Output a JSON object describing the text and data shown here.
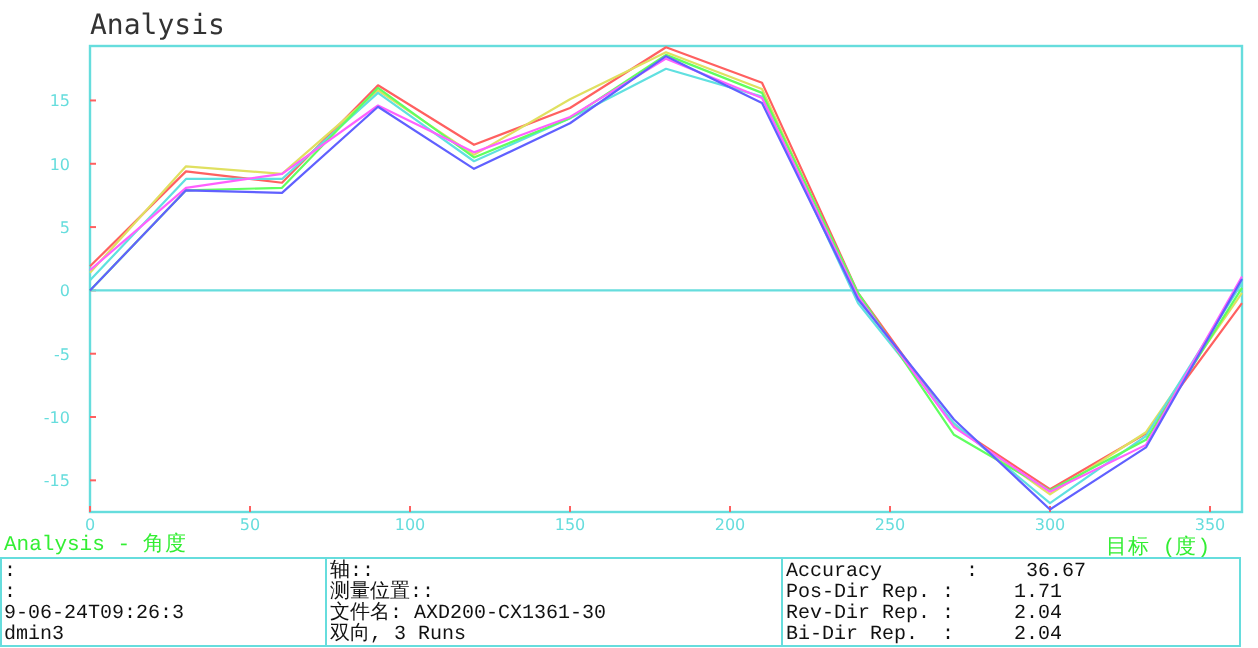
{
  "chart_data": {
    "type": "line",
    "title": "Analysis",
    "subtitle": "Analysis - 角度",
    "xlabel": "目标 (度)",
    "x": [
      0,
      30,
      60,
      90,
      120,
      150,
      180,
      210,
      240,
      270,
      300,
      330,
      360
    ],
    "xlim": [
      0,
      360
    ],
    "xticks": [
      0,
      50,
      100,
      150,
      200,
      250,
      300,
      350
    ],
    "ylim": [
      -17.5,
      19.3
    ],
    "yticks": [
      -15,
      -10,
      -5,
      0,
      5,
      10,
      15
    ],
    "grid": false,
    "ref_lines": [
      {
        "axis": "y",
        "value": 0,
        "color": "#66dddd"
      }
    ],
    "series": [
      {
        "color": "#ff6060",
        "values": [
          1.9,
          9.4,
          8.5,
          16.2,
          11.5,
          14.4,
          19.2,
          16.4,
          -0.2,
          -10.7,
          -15.7,
          -11.3,
          -1.0
        ]
      },
      {
        "color": "#e0e060",
        "values": [
          1.4,
          9.8,
          9.2,
          15.8,
          10.7,
          15.1,
          18.8,
          15.9,
          -0.5,
          -10.7,
          -16.1,
          -11.2,
          -0.2
        ]
      },
      {
        "color": "#60e0e0",
        "values": [
          0.8,
          8.8,
          8.8,
          15.6,
          10.2,
          13.6,
          17.5,
          15.3,
          -1.0,
          -10.5,
          -16.8,
          -11.5,
          0.6
        ]
      },
      {
        "color": "#60ff60",
        "values": [
          0,
          7.9,
          8.1,
          16.0,
          10.5,
          13.6,
          18.6,
          15.6,
          -0.2,
          -11.4,
          -15.8,
          -11.8,
          0.2
        ]
      },
      {
        "color": "#ff60ff",
        "values": [
          1.6,
          8.1,
          9.2,
          14.6,
          10.9,
          13.7,
          18.3,
          15.2,
          -0.5,
          -10.8,
          -15.9,
          -12.2,
          1.1
        ]
      },
      {
        "color": "#6060ff",
        "values": [
          0,
          7.9,
          7.7,
          14.5,
          9.6,
          13.2,
          18.5,
          14.8,
          -0.7,
          -10.2,
          -17.3,
          -12.4,
          0.9
        ]
      }
    ],
    "annotations": [
      ":",
      ":",
      "9-06-24T09:26:3",
      "dmin3",
      "轴::",
      "测量位置::",
      "文件名: AXD200-CX1361-30",
      "双向, 3 Runs",
      "Accuracy       :    36.67",
      "Pos-Dir Rep. :     1.71",
      "Rev-Dir Rep. :     2.04",
      "Bi-Dir Rep.  :     2.04"
    ]
  }
}
